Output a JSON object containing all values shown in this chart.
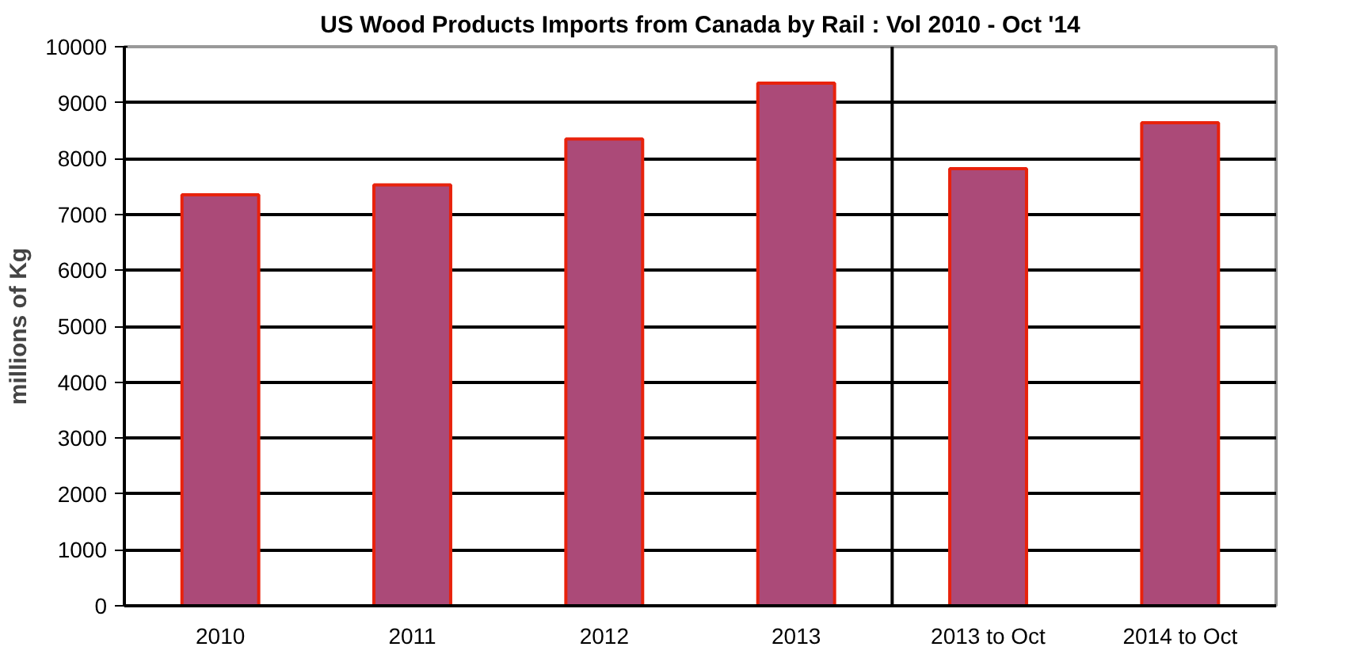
{
  "chart_data": {
    "type": "bar",
    "title": "US Wood Products Imports from Canada by Rail : Vol 2010 - Oct '14",
    "ylabel": "millions of Kg",
    "categories": [
      "2010",
      "2011",
      "2012",
      "2013",
      "2013 to Oct",
      "2014 to Oct"
    ],
    "series": [
      {
        "color": "#ab4a78",
        "values": [
          7350,
          7530,
          8350,
          9350,
          7820,
          8640
        ]
      }
    ],
    "ylim": [
      0,
      10000
    ],
    "yticks": [
      0,
      1000,
      2000,
      3000,
      4000,
      5000,
      6000,
      7000,
      8000,
      9000,
      10000
    ],
    "grid": "y"
  }
}
